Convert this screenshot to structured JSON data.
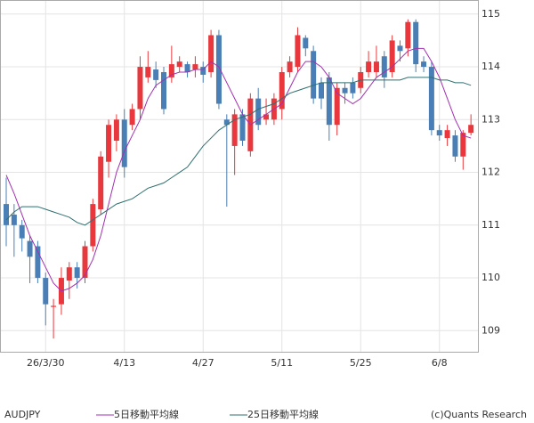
{
  "chart_data": {
    "type": "candlestick",
    "symbol": "AUDJPY",
    "credit": "(c)Quants Research",
    "categories": [
      null,
      null,
      null,
      null,
      null,
      "26/3/30",
      null,
      null,
      null,
      null,
      null,
      null,
      null,
      null,
      null,
      "4/13",
      null,
      null,
      null,
      null,
      null,
      null,
      null,
      null,
      null,
      "4/27",
      null,
      null,
      null,
      null,
      null,
      null,
      null,
      null,
      null,
      "5/11",
      null,
      null,
      null,
      null,
      null,
      null,
      null,
      null,
      null,
      "5/25",
      null,
      null,
      null,
      null,
      null,
      null,
      null,
      null,
      null,
      "6/8",
      null,
      null,
      null,
      null
    ],
    "open": [
      111.4,
      111.2,
      111.0,
      110.7,
      110.6,
      110.0,
      109.45,
      109.5,
      109.95,
      110.2,
      110.0,
      110.6,
      111.3,
      112.2,
      112.6,
      113.0,
      112.9,
      113.2,
      113.8,
      113.95,
      113.9,
      113.8,
      114.0,
      114.05,
      113.95,
      114.0,
      113.9,
      114.6,
      113.0,
      112.5,
      113.1,
      112.4,
      113.4,
      113.0,
      113.0,
      113.2,
      113.9,
      114.0,
      114.55,
      114.3,
      113.7,
      113.8,
      112.9,
      113.6,
      113.7,
      113.6,
      113.9,
      113.9,
      114.2,
      113.9,
      114.4,
      114.35,
      114.85,
      114.1,
      114.0,
      112.8,
      112.65,
      112.7,
      112.3,
      112.75
    ],
    "high": [
      111.9,
      111.4,
      111.1,
      110.8,
      110.7,
      110.1,
      109.6,
      110.2,
      110.3,
      110.3,
      110.7,
      111.5,
      112.4,
      113.0,
      113.1,
      113.2,
      113.3,
      114.2,
      114.3,
      114.1,
      114.0,
      114.4,
      114.2,
      114.1,
      114.2,
      114.1,
      114.7,
      114.7,
      113.1,
      113.2,
      113.2,
      113.5,
      113.6,
      113.4,
      113.5,
      114.0,
      114.2,
      114.75,
      114.6,
      114.4,
      113.8,
      113.9,
      113.7,
      113.7,
      113.8,
      114.0,
      114.3,
      114.4,
      114.3,
      114.6,
      114.5,
      114.9,
      114.9,
      114.2,
      114.1,
      112.9,
      112.9,
      112.8,
      112.8,
      113.1
    ],
    "low": [
      110.6,
      110.4,
      110.5,
      109.9,
      109.9,
      109.1,
      108.85,
      109.3,
      109.6,
      109.8,
      109.9,
      110.5,
      111.2,
      111.9,
      112.4,
      111.9,
      112.8,
      113.0,
      113.7,
      113.6,
      113.1,
      113.7,
      113.9,
      113.8,
      113.8,
      113.7,
      113.8,
      113.2,
      111.35,
      111.95,
      112.5,
      112.3,
      112.8,
      112.9,
      112.9,
      113.0,
      113.8,
      113.9,
      114.2,
      113.3,
      113.2,
      112.6,
      112.7,
      113.3,
      113.4,
      113.5,
      113.8,
      113.8,
      113.6,
      113.8,
      114.1,
      114.2,
      113.9,
      113.9,
      112.7,
      112.6,
      112.5,
      112.2,
      112.05,
      112.7
    ],
    "close": [
      111.0,
      111.0,
      110.75,
      110.4,
      110.0,
      109.5,
      109.47,
      110.0,
      110.2,
      110.0,
      110.6,
      111.4,
      112.3,
      112.9,
      113.0,
      112.1,
      113.2,
      114.0,
      114.0,
      113.75,
      113.2,
      114.05,
      114.1,
      113.9,
      114.05,
      113.85,
      114.6,
      113.3,
      112.9,
      113.1,
      112.6,
      113.4,
      112.9,
      113.1,
      113.4,
      113.9,
      114.1,
      114.6,
      114.35,
      113.4,
      113.4,
      112.9,
      113.6,
      113.5,
      113.5,
      113.9,
      114.1,
      114.1,
      113.8,
      114.5,
      114.3,
      114.85,
      114.05,
      114.0,
      112.8,
      112.7,
      112.8,
      112.3,
      112.75,
      112.9
    ],
    "up_color": "#e8383d",
    "down_color": "#4a7fb5",
    "series": [
      {
        "name": "5日移動平均線",
        "color": "#a030b0",
        "values": [
          111.95,
          111.6,
          111.2,
          110.8,
          110.5,
          110.2,
          109.9,
          109.75,
          109.8,
          109.9,
          110.05,
          110.35,
          110.8,
          111.4,
          112.0,
          112.4,
          112.7,
          113.0,
          113.4,
          113.65,
          113.75,
          113.85,
          113.9,
          113.9,
          113.95,
          113.95,
          114.1,
          114.0,
          113.7,
          113.4,
          113.1,
          112.9,
          113.0,
          113.1,
          113.2,
          113.3,
          113.6,
          113.9,
          114.1,
          114.1,
          114.0,
          113.8,
          113.5,
          113.4,
          113.3,
          113.4,
          113.6,
          113.8,
          113.9,
          114.0,
          114.15,
          114.3,
          114.35,
          114.35,
          114.1,
          113.8,
          113.4,
          113.0,
          112.7,
          112.65
        ]
      },
      {
        "name": "25日移動平均線",
        "color": "#2f6f6f",
        "values": [
          111.1,
          111.25,
          111.35,
          111.35,
          111.35,
          111.3,
          111.25,
          111.2,
          111.15,
          111.05,
          111.0,
          111.1,
          111.2,
          111.3,
          111.4,
          111.45,
          111.5,
          111.6,
          111.7,
          111.75,
          111.8,
          111.9,
          112.0,
          112.1,
          112.3,
          112.5,
          112.65,
          112.8,
          112.9,
          113.0,
          113.05,
          113.1,
          113.2,
          113.25,
          113.3,
          113.4,
          113.5,
          113.55,
          113.6,
          113.65,
          113.7,
          113.7,
          113.7,
          113.7,
          113.7,
          113.75,
          113.75,
          113.75,
          113.75,
          113.75,
          113.75,
          113.8,
          113.8,
          113.8,
          113.8,
          113.75,
          113.75,
          113.7,
          113.7,
          113.65
        ]
      }
    ],
    "ylim": [
      108.6,
      115.25
    ],
    "yticks": [
      109,
      110,
      111,
      112,
      113,
      114,
      115
    ],
    "grid": true
  }
}
